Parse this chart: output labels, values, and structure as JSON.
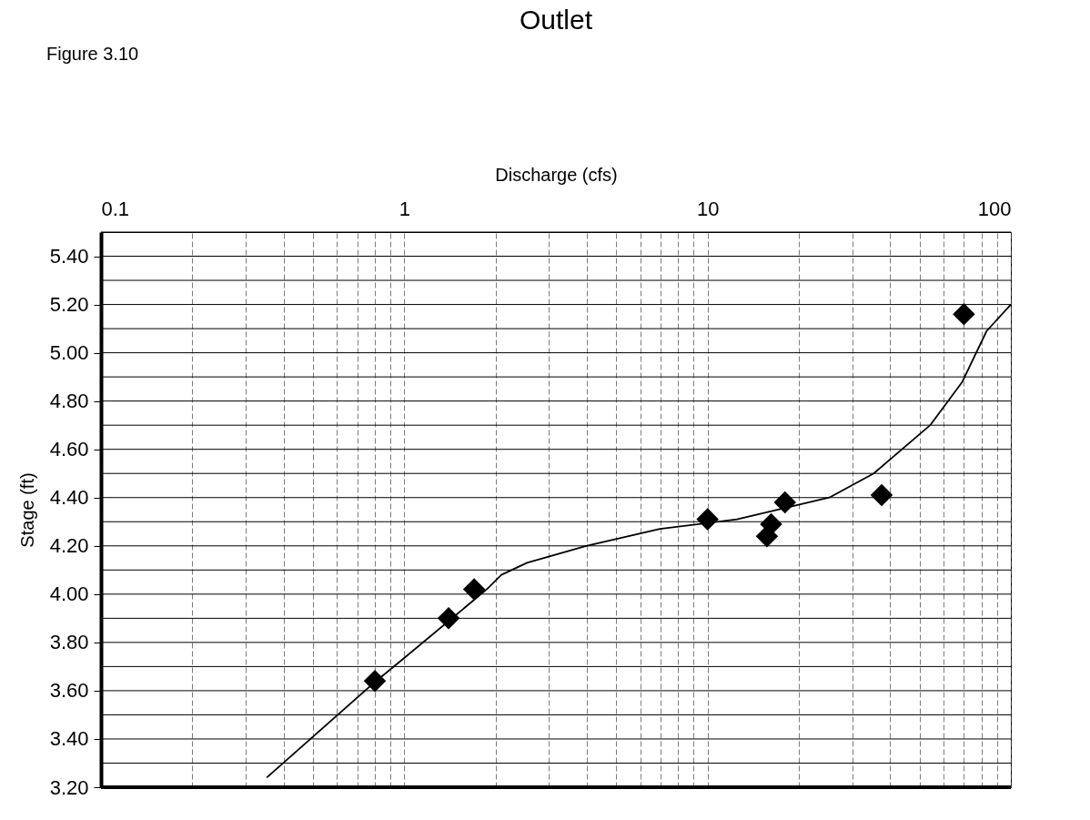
{
  "chart_data": {
    "type": "scatter",
    "title": "Outlet",
    "xlabel": "Discharge (cfs)",
    "ylabel": "Stage (ft)",
    "annotations": [
      "Figure 3.10"
    ],
    "log": "x",
    "grid": true,
    "line_style": "solid",
    "xlim": [
      0.1,
      100
    ],
    "ylim": [
      3.2,
      5.5
    ],
    "xticks": [
      0.1,
      {
        "value": 0.2,
        "label": null
      },
      {
        "value": 0.3,
        "label": null
      },
      {
        "value": 0.4,
        "label": null
      },
      {
        "value": 0.5,
        "label": null
      },
      {
        "value": 0.6,
        "label": null
      },
      {
        "value": 0.7,
        "label": null
      },
      {
        "value": 0.8,
        "label": null
      },
      {
        "value": 0.9,
        "label": null
      },
      1,
      {
        "value": 2,
        "label": null
      },
      {
        "value": 3,
        "label": null
      },
      {
        "value": 4,
        "label": null
      },
      {
        "value": 5,
        "label": null
      },
      {
        "value": 6,
        "label": null
      },
      {
        "value": 7,
        "label": null
      },
      {
        "value": 8,
        "label": null
      },
      {
        "value": 9,
        "label": null
      },
      10,
      {
        "value": 20,
        "label": null
      },
      {
        "value": 30,
        "label": null
      },
      {
        "value": 40,
        "label": null
      },
      {
        "value": 50,
        "label": null
      },
      {
        "value": 60,
        "label": null
      },
      {
        "value": 70,
        "label": null
      },
      {
        "value": 80,
        "label": null
      },
      {
        "value": 90,
        "label": null
      },
      100
    ],
    "yticks": [
      {
        "value": 3.2,
        "label": "3.20"
      },
      {
        "value": 3.3,
        "label": null
      },
      {
        "value": 3.4,
        "label": "3.40"
      },
      {
        "value": 3.5,
        "label": null
      },
      {
        "value": 3.6,
        "label": "3.60"
      },
      {
        "value": 3.7,
        "label": null
      },
      {
        "value": 3.8,
        "label": "3.80"
      },
      {
        "value": 3.9,
        "label": null
      },
      {
        "value": 4.0,
        "label": "4.00"
      },
      {
        "value": 4.1,
        "label": null
      },
      {
        "value": 4.2,
        "label": "4.20"
      },
      {
        "value": 4.3,
        "label": null
      },
      {
        "value": 4.4,
        "label": "4.40"
      },
      {
        "value": 4.5,
        "label": null
      },
      {
        "value": 4.6,
        "label": "4.60"
      },
      {
        "value": 4.7,
        "label": null
      },
      {
        "value": 4.8,
        "label": "4.80"
      },
      {
        "value": 4.9,
        "label": null
      },
      {
        "value": 5.0,
        "label": "5.00"
      },
      {
        "value": 5.1,
        "label": null
      },
      {
        "value": 5.2,
        "label": "5.20"
      },
      {
        "value": 5.3,
        "label": null
      },
      {
        "value": 5.4,
        "label": "5.40"
      },
      {
        "value": 5.5,
        "label": null
      }
    ],
    "series": [
      {
        "type": "line",
        "color": "#000000",
        "x": [
          0.352,
          0.79,
          1.01,
          1.87,
          2.09,
          2.54,
          3.98,
          6.97,
          12.5,
          25.2,
          35.3,
          54.2,
          69.2,
          83.2,
          100
        ],
        "values": [
          3.24,
          3.63,
          3.74,
          4.02,
          4.08,
          4.13,
          4.2,
          4.27,
          4.31,
          4.4,
          4.5,
          4.7,
          4.88,
          5.09,
          5.2
        ]
      },
      {
        "color": "#000000",
        "marker": "diamond",
        "x": [
          0.8,
          1.4,
          1.7,
          10,
          15.7,
          16.2,
          18,
          37.5,
          70
        ],
        "values": [
          3.64,
          3.9,
          4.02,
          4.31,
          4.24,
          4.29,
          4.38,
          4.41,
          5.16
        ]
      }
    ]
  }
}
